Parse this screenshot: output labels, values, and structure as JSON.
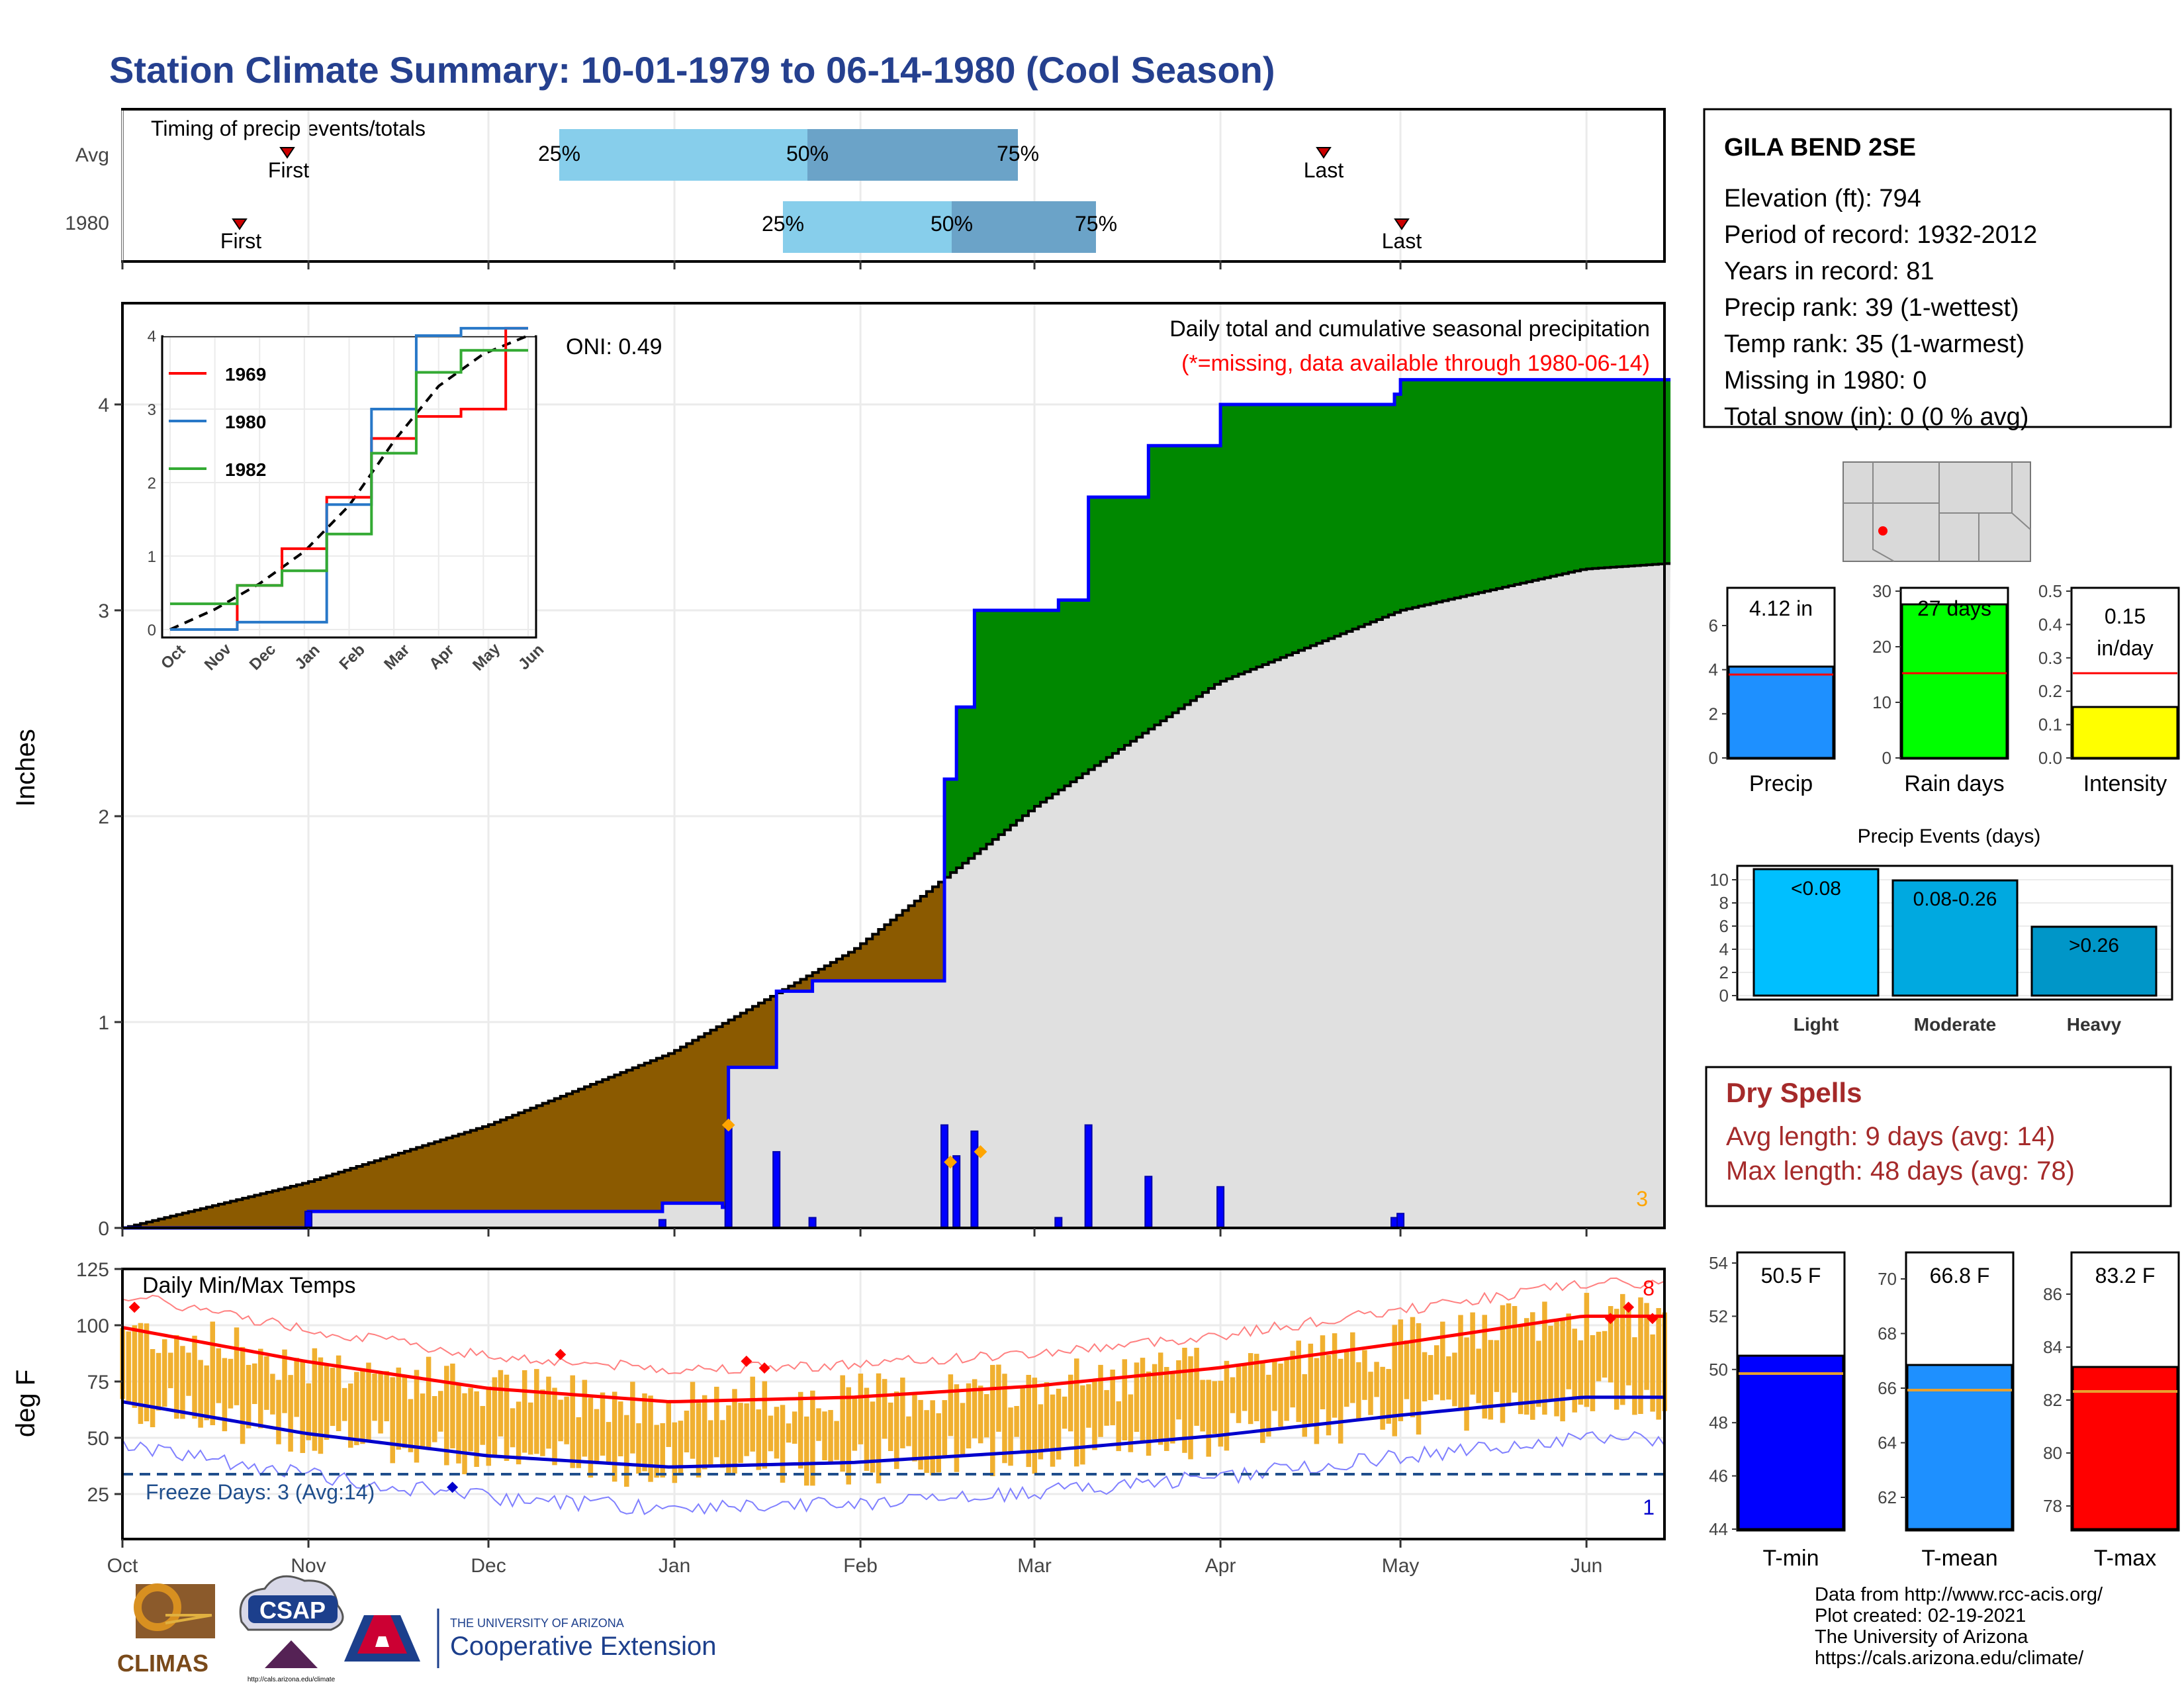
{
  "title": "Station Climate Summary: 10-01-1979 to 06-14-1980 (Cool Season)",
  "colors": {
    "title": "#25408F",
    "ts_green": "#008800",
    "ts_brown": "#8B5A00",
    "ts_grey": "#E0E0E0",
    "daily_blue": "#0000FF",
    "light_blue": "#87CEEB",
    "mid_blue": "#6BA3C8",
    "temp_bar": "#F0B030",
    "tmax_avg": "#FF0000",
    "tmin_avg": "#0000CC",
    "dryspell": "#A52A2A"
  },
  "timing": {
    "title": "Timing of precip events/totals",
    "rows": [
      {
        "label": "Avg",
        "first_label": "First",
        "last_label": "Last"
      },
      {
        "label": "1980",
        "first_label": "First",
        "last_label": "Last"
      }
    ],
    "q_labels": [
      "25%",
      "50%",
      "75%"
    ]
  },
  "month_labels": [
    "Oct",
    "Nov",
    "Dec",
    "Jan",
    "Feb",
    "Mar",
    "Apr",
    "May",
    "Jun"
  ],
  "main": {
    "ylabel": "Inches",
    "oni_label": "ONI: 0.49",
    "subtitle": "Daily total and cumulative seasonal precipitation",
    "missing_note": "(*=missing, data available through 1980-06-14)",
    "corner_count": "3",
    "yticks": [
      "0",
      "1",
      "2",
      "3",
      "4"
    ]
  },
  "inset": {
    "legend": [
      "1969",
      "1980",
      "1982"
    ],
    "yticks": [
      "0",
      "1",
      "2",
      "3",
      "4"
    ],
    "xticks": [
      "Oct",
      "Nov",
      "Dec",
      "Jan",
      "Feb",
      "Mar",
      "Apr",
      "May",
      "Jun"
    ]
  },
  "temps": {
    "label": "Daily Min/Max Temps",
    "ylabel": "deg F",
    "freeze_label": "Freeze Days: 3 (Avg:14)",
    "corner_high": "8",
    "corner_low": "1",
    "yticks": [
      "25",
      "50",
      "75",
      "100",
      "125"
    ]
  },
  "station": {
    "name": "GILA BEND 2SE",
    "lines": [
      "Elevation (ft): 794",
      "Period of record: 1932-2012",
      "Years in record: 81",
      "Precip rank: 39 (1-wettest)",
      "Temp rank: 35 (1-warmest)",
      "Missing in 1980: 0",
      "Total snow (in): 0 (0 % avg)"
    ]
  },
  "summary_bars": [
    {
      "label": "Precip",
      "value_text": "4.12 in",
      "ticks": [
        "0",
        "2",
        "4",
        "6"
      ]
    },
    {
      "label": "Rain days",
      "value_text": "27 days",
      "ticks": [
        "0",
        "10",
        "20",
        "30"
      ]
    },
    {
      "label": "Intensity",
      "value_text_1": "0.15",
      "value_text_2": "in/day",
      "ticks": [
        "0.0",
        "0.1",
        "0.2",
        "0.3",
        "0.4",
        "0.5"
      ]
    }
  ],
  "events": {
    "title": "Precip Events (days)",
    "categories": [
      "Light",
      "Moderate",
      "Heavy"
    ],
    "bar_labels": [
      "<0.08",
      "0.08-0.26",
      ">0.26"
    ],
    "ticks": [
      "0",
      "2",
      "4",
      "6",
      "8",
      "10"
    ]
  },
  "dry_spells": {
    "title": "Dry Spells",
    "avg_line": "Avg length: 9 days (avg: 14)",
    "max_line": "Max length: 48 days (avg: 78)"
  },
  "temp_bars": [
    {
      "label": "T-min",
      "value_text": "50.5 F",
      "ticks": [
        "44",
        "46",
        "48",
        "50",
        "52",
        "54"
      ]
    },
    {
      "label": "T-mean",
      "value_text": "66.8 F",
      "ticks": [
        "62",
        "64",
        "66",
        "68",
        "70"
      ]
    },
    {
      "label": "T-max",
      "value_text": "83.2 F",
      "ticks": [
        "78",
        "80",
        "82",
        "84",
        "86"
      ]
    }
  ],
  "footer": {
    "lines": [
      "Data from http://www.rcc-acis.org/",
      "Plot created: 02-19-2021",
      "The University of Arizona",
      "https://cals.arizona.edu/climate/"
    ],
    "climas": "CLIMAS",
    "csap": "CSAP",
    "csap_url": "http://cals.arizona.edu/climate",
    "ua_small": "THE UNIVERSITY OF ARIZONA",
    "ua_big": "Cooperative Extension"
  },
  "chart_data": [
    {
      "type": "area",
      "title": "Daily total and cumulative seasonal precipitation",
      "ylabel": "Inches",
      "ylim": [
        0,
        4.5
      ],
      "x_range": [
        "1979-10-01",
        "1980-06-14"
      ],
      "series": [
        {
          "name": "1980",
          "x": [
            "1979-10-01",
            "1979-11-01",
            "1979-12-30",
            "1980-01-09",
            "1980-01-10",
            "1980-01-18",
            "1980-01-24",
            "1980-02-15",
            "1980-02-17",
            "1980-02-20",
            "1980-03-05",
            "1980-03-10",
            "1980-03-20",
            "1980-04-01",
            "1980-04-30",
            "1980-05-01",
            "1980-06-14"
          ],
          "values": [
            0.0,
            0.08,
            0.12,
            0.1,
            0.78,
            1.15,
            1.2,
            2.18,
            2.53,
            3.0,
            3.05,
            3.55,
            3.8,
            4.0,
            4.05,
            4.12,
            4.12
          ]
        }
      ]
    },
    {
      "type": "line",
      "title": "",
      "ylim": [
        0,
        4.3
      ],
      "series": [
        {
          "name": "1969",
          "values": [
            0,
            0,
            0.6,
            1.1,
            1.8,
            2.6,
            2.9,
            3.0,
            4.1
          ]
        },
        {
          "name": "1980",
          "values": [
            0,
            0,
            0.1,
            0.1,
            1.7,
            3.0,
            4.0,
            4.1,
            4.1
          ]
        },
        {
          "name": "1982",
          "values": [
            0.35,
            0.35,
            0.6,
            0.8,
            1.3,
            2.4,
            3.5,
            3.8,
            3.8
          ]
        }
      ],
      "categories": [
        "Oct",
        "Nov",
        "Dec",
        "Jan",
        "Feb",
        "Mar",
        "Apr",
        "May",
        "Jun"
      ]
    },
    {
      "type": "line",
      "title": "Daily Min/Max Temps",
      "ylabel": "deg F",
      "ylim": [
        5,
        125
      ],
      "freeze_line": 32,
      "avg_tmax": {
        "x": [
          "Oct",
          "Nov",
          "Dec",
          "Jan",
          "Feb",
          "Mar",
          "Apr",
          "May",
          "Jun"
        ],
        "values": [
          99,
          84,
          72,
          66,
          68,
          73,
          81,
          92,
          104
        ]
      },
      "avg_tmin": {
        "x": [
          "Oct",
          "Nov",
          "Dec",
          "Jan",
          "Feb",
          "Mar",
          "Apr",
          "May",
          "Jun"
        ],
        "values": [
          66,
          52,
          42,
          37,
          39,
          44,
          51,
          60,
          68
        ]
      }
    },
    {
      "type": "bar",
      "title": "",
      "categories": [
        "Precip",
        "Rain days",
        "Intensity"
      ],
      "values": [
        4.12,
        27,
        0.15
      ],
      "averages": [
        3.8,
        15,
        0.25
      ]
    },
    {
      "type": "bar",
      "title": "Precip Events (days)",
      "categories": [
        "Light",
        "Moderate",
        "Heavy"
      ],
      "values": [
        11,
        10,
        6
      ],
      "ylim": [
        0,
        11
      ]
    },
    {
      "type": "bar",
      "title": "",
      "categories": [
        "T-min",
        "T-mean",
        "T-max"
      ],
      "values": [
        50.5,
        66.8,
        83.2
      ],
      "averages": [
        49.3,
        65.8,
        82.3
      ]
    }
  ]
}
